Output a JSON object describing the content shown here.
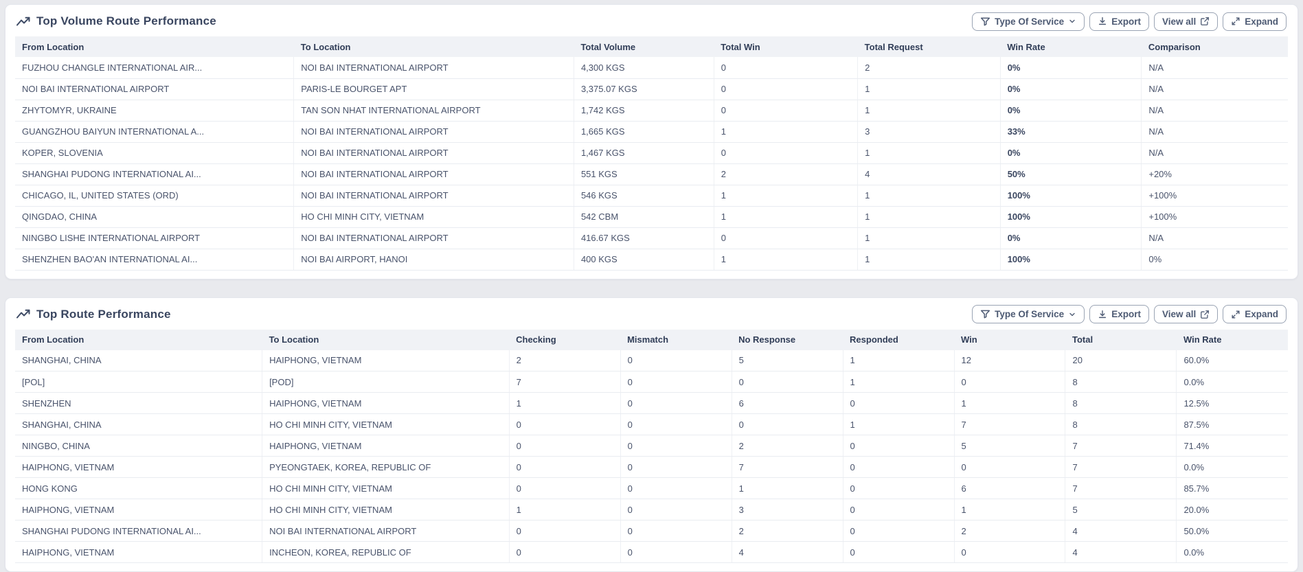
{
  "actions": {
    "type_of_service": "Type Of Service",
    "export": "Export",
    "view_all": "View all",
    "expand": "Expand"
  },
  "icons": {
    "card_title": "trend-up-icon",
    "type_of_service": "filter-icon",
    "type_of_service_caret": "chevron-down-icon",
    "export": "download-icon",
    "view_all": "external-link-icon",
    "expand": "expand-arrows-icon"
  },
  "colors": {
    "page_bg": "#e9eaee",
    "card_bg": "#ffffff",
    "header_row_bg": "#f0f2f6",
    "text": "#3b4863",
    "button_border": "#99a3b3",
    "row_border": "#e9ecf1"
  },
  "cards": [
    {
      "title": "Top Volume Route Performance",
      "columns": [
        "From Location",
        "To Location",
        "Total Volume",
        "Total Win",
        "Total Request",
        "Win Rate",
        "Comparison"
      ],
      "rows": [
        [
          "FUZHOU CHANGLE INTERNATIONAL AIR...",
          "NOI BAI INTERNATIONAL AIRPORT",
          "4,300 KGS",
          "0",
          "2",
          "0%",
          "N/A"
        ],
        [
          "NOI BAI INTERNATIONAL AIRPORT",
          "PARIS-LE BOURGET APT",
          "3,375.07 KGS",
          "0",
          "1",
          "0%",
          "N/A"
        ],
        [
          "ZHYTOMYR, UKRAINE",
          "TAN SON NHAT INTERNATIONAL AIRPORT",
          "1,742 KGS",
          "0",
          "1",
          "0%",
          "N/A"
        ],
        [
          "GUANGZHOU BAIYUN INTERNATIONAL A...",
          "NOI BAI INTERNATIONAL AIRPORT",
          "1,665 KGS",
          "1",
          "3",
          "33%",
          "N/A"
        ],
        [
          "KOPER, SLOVENIA",
          "NOI BAI INTERNATIONAL AIRPORT",
          "1,467 KGS",
          "0",
          "1",
          "0%",
          "N/A"
        ],
        [
          "SHANGHAI PUDONG INTERNATIONAL AI...",
          "NOI BAI INTERNATIONAL AIRPORT",
          "551 KGS",
          "2",
          "4",
          "50%",
          "+20%"
        ],
        [
          "CHICAGO, IL, UNITED STATES (ORD)",
          "NOI BAI INTERNATIONAL AIRPORT",
          "546 KGS",
          "1",
          "1",
          "100%",
          "+100%"
        ],
        [
          "QINGDAO, CHINA",
          "HO CHI MINH CITY, VIETNAM",
          "542 CBM",
          "1",
          "1",
          "100%",
          "+100%"
        ],
        [
          "NINGBO LISHE INTERNATIONAL AIRPORT",
          "NOI BAI INTERNATIONAL AIRPORT",
          "416.67 KGS",
          "0",
          "1",
          "0%",
          "N/A"
        ],
        [
          "SHENZHEN BAO'AN INTERNATIONAL AI...",
          "NOI BAI AIRPORT, HANOI",
          "400 KGS",
          "1",
          "1",
          "100%",
          "0%"
        ]
      ]
    },
    {
      "title": "Top Route Performance",
      "columns": [
        "From Location",
        "To Location",
        "Checking",
        "Mismatch",
        "No Response",
        "Responded",
        "Win",
        "Total",
        "Win Rate"
      ],
      "rows": [
        [
          "SHANGHAI, CHINA",
          "HAIPHONG, VIETNAM",
          "2",
          "0",
          "5",
          "1",
          "12",
          "20",
          "60.0%"
        ],
        [
          "[POL]",
          "[POD]",
          "7",
          "0",
          "0",
          "1",
          "0",
          "8",
          "0.0%"
        ],
        [
          "SHENZHEN",
          "HAIPHONG, VIETNAM",
          "1",
          "0",
          "6",
          "0",
          "1",
          "8",
          "12.5%"
        ],
        [
          "SHANGHAI, CHINA",
          "HO CHI MINH CITY, VIETNAM",
          "0",
          "0",
          "0",
          "1",
          "7",
          "8",
          "87.5%"
        ],
        [
          "NINGBO, CHINA",
          "HAIPHONG, VIETNAM",
          "0",
          "0",
          "2",
          "0",
          "5",
          "7",
          "71.4%"
        ],
        [
          "HAIPHONG, VIETNAM",
          "PYEONGTAEK, KOREA, REPUBLIC OF",
          "0",
          "0",
          "7",
          "0",
          "0",
          "7",
          "0.0%"
        ],
        [
          "HONG KONG",
          "HO CHI MINH CITY, VIETNAM",
          "0",
          "0",
          "1",
          "0",
          "6",
          "7",
          "85.7%"
        ],
        [
          "HAIPHONG, VIETNAM",
          "HO CHI MINH CITY, VIETNAM",
          "1",
          "0",
          "3",
          "0",
          "1",
          "5",
          "20.0%"
        ],
        [
          "SHANGHAI PUDONG INTERNATIONAL AI...",
          "NOI BAI INTERNATIONAL AIRPORT",
          "0",
          "0",
          "2",
          "0",
          "2",
          "4",
          "50.0%"
        ],
        [
          "HAIPHONG, VIETNAM",
          "INCHEON, KOREA, REPUBLIC OF",
          "0",
          "0",
          "4",
          "0",
          "0",
          "4",
          "0.0%"
        ]
      ]
    }
  ]
}
